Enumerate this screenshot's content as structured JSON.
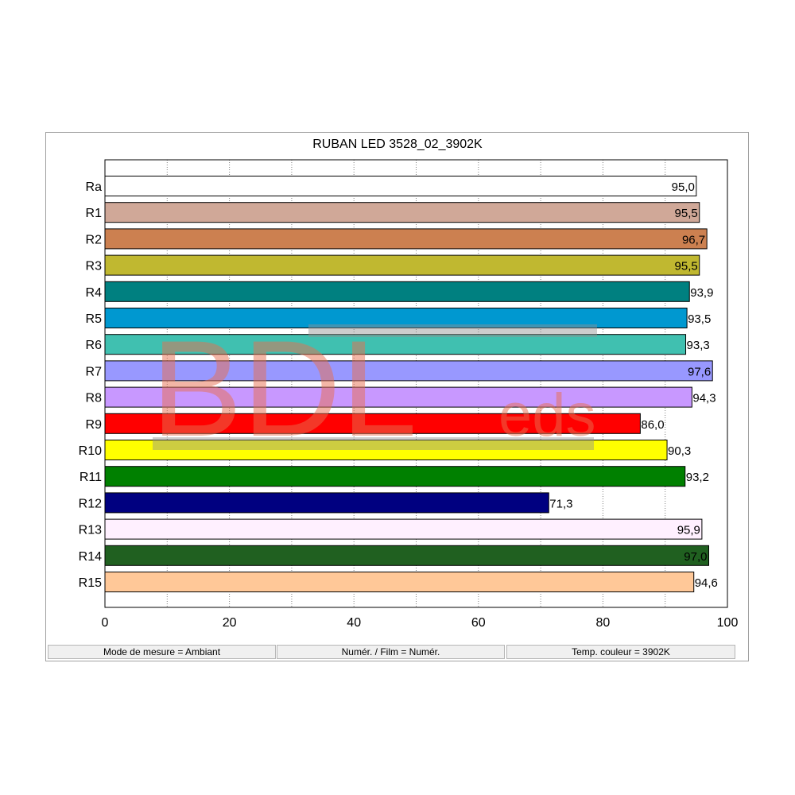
{
  "chart_data": {
    "type": "bar",
    "orientation": "horizontal",
    "title": "RUBAN LED 3528_02_3902K",
    "xlabel": "",
    "ylabel": "",
    "xlim": [
      0,
      100
    ],
    "x_ticks": [
      "0",
      "20",
      "40",
      "60",
      "80",
      "100"
    ],
    "grid": "vertical dotted gridlines every 10",
    "categories": [
      "Ra",
      "R1",
      "R2",
      "R3",
      "R4",
      "R5",
      "R6",
      "R7",
      "R8",
      "R9",
      "R10",
      "R11",
      "R12",
      "R13",
      "R14",
      "R15"
    ],
    "values": [
      95.0,
      95.5,
      96.7,
      95.5,
      93.9,
      93.5,
      93.3,
      97.6,
      94.3,
      86.0,
      90.3,
      93.2,
      71.3,
      95.9,
      97.0,
      94.6
    ],
    "value_labels": [
      "95,0",
      "95,5",
      "96,7",
      "95,5",
      "93,9",
      "93,5",
      "93,3",
      "97,6",
      "94,3",
      "86,0",
      "90,3",
      "93,2",
      "71,3",
      "95,9",
      "97,0",
      "94,6"
    ],
    "colors": [
      "#ffffff",
      "#d0a898",
      "#cc8050",
      "#c0b830",
      "#008080",
      "#0098d0",
      "#40c0b0",
      "#9898ff",
      "#c898ff",
      "#ff0000",
      "#ffff00",
      "#008000",
      "#000080",
      "#fff0ff",
      "#206020",
      "#ffc898"
    ]
  },
  "status_bar": {
    "mode": "Mode de mesure = Ambiant",
    "film": "Numér. / Film = Numér.",
    "temp": "Temp. couleur = 3902K"
  },
  "watermark": {
    "text_main": "BDL",
    "text_sub": "eds",
    "color": "#e87050"
  }
}
